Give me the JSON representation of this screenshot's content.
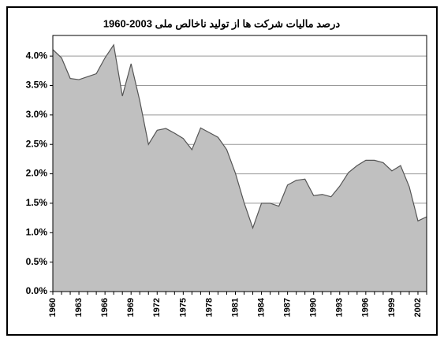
{
  "chart_data": {
    "type": "area",
    "title": "درصد مالیات شرکت ها از تولید ناخالص ملی 2003-1960",
    "x": [
      1960,
      1961,
      1962,
      1963,
      1964,
      1965,
      1966,
      1967,
      1968,
      1969,
      1970,
      1971,
      1972,
      1973,
      1974,
      1975,
      1976,
      1977,
      1978,
      1979,
      1980,
      1981,
      1982,
      1983,
      1984,
      1985,
      1986,
      1987,
      1988,
      1989,
      1990,
      1991,
      1992,
      1993,
      1994,
      1995,
      1996,
      1997,
      1998,
      1999,
      2000,
      2001,
      2002,
      2003
    ],
    "values": [
      4.11,
      3.97,
      3.62,
      3.6,
      3.65,
      3.7,
      3.97,
      4.19,
      3.32,
      3.87,
      3.24,
      2.5,
      2.74,
      2.77,
      2.69,
      2.6,
      2.41,
      2.78,
      2.7,
      2.62,
      2.41,
      2.01,
      1.51,
      1.08,
      1.5,
      1.5,
      1.45,
      1.81,
      1.89,
      1.91,
      1.63,
      1.65,
      1.61,
      1.79,
      2.02,
      2.14,
      2.23,
      2.23,
      2.19,
      2.05,
      2.14,
      1.78,
      1.2,
      1.27
    ],
    "color": "#c0c0c0",
    "line_color": "#555555",
    "xlim": [
      1960,
      2003
    ],
    "xticks": [
      1960,
      1963,
      1966,
      1969,
      1972,
      1975,
      1978,
      1981,
      1984,
      1987,
      1990,
      1993,
      1996,
      1999,
      2002
    ],
    "ylim": [
      0,
      4.35
    ],
    "yticks": [
      {
        "value": 0,
        "label": "0.0%"
      },
      {
        "value": 0.5,
        "label": "0.5%"
      },
      {
        "value": 1,
        "label": "1.0%"
      },
      {
        "value": 1.5,
        "label": "1.5%"
      },
      {
        "value": 2,
        "label": "2.0%"
      },
      {
        "value": 2.5,
        "label": "2.5%"
      },
      {
        "value": 3,
        "label": "3.0%"
      },
      {
        "value": 3.5,
        "label": "3.5%"
      },
      {
        "value": 4,
        "label": "4.0%"
      }
    ],
    "grid": true
  }
}
